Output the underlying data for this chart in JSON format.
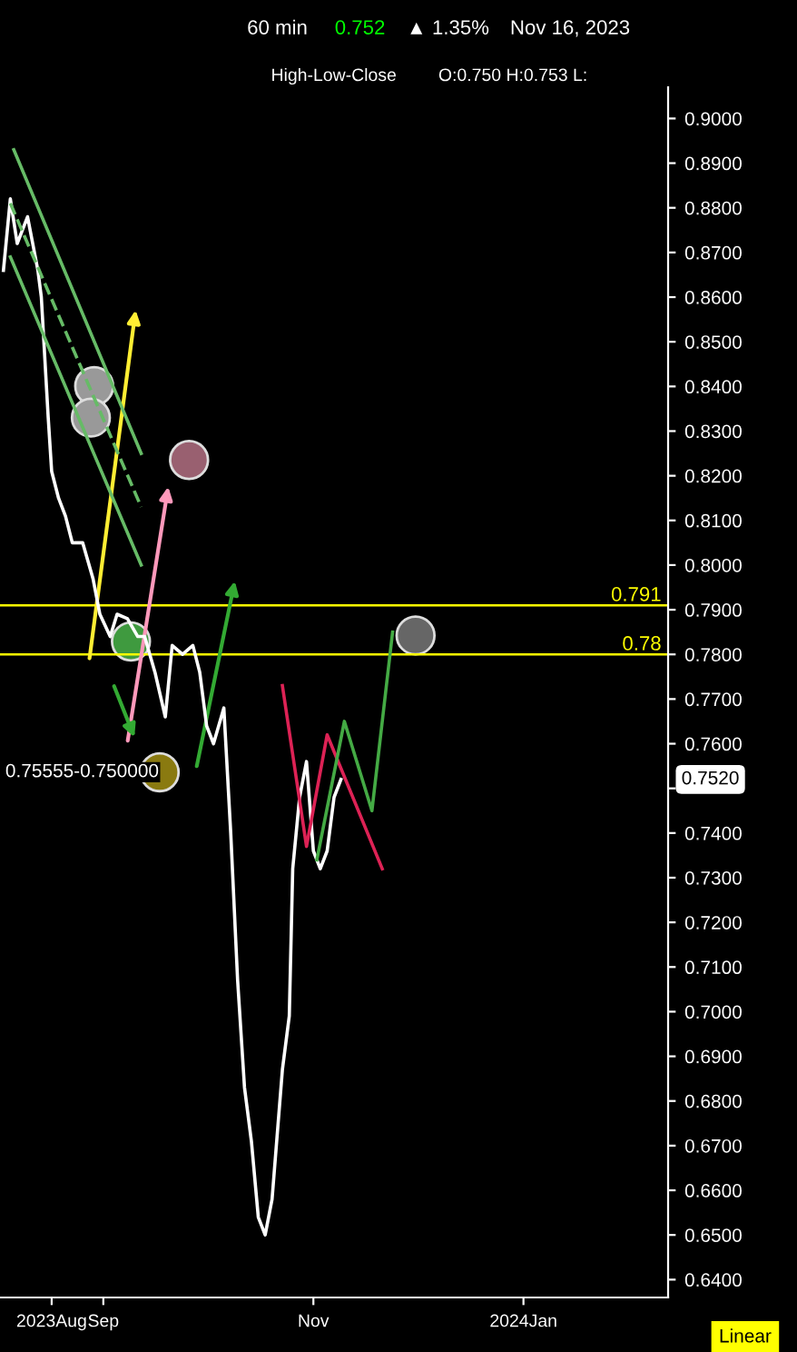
{
  "chart_data": {
    "type": "line",
    "title": "60 min",
    "subtitle": "High-Low-Close",
    "annotations": [
      "0.752",
      "▲ 1.35%",
      "Nov 16, 2023",
      "O:0.750 H:0.753 L:",
      "0.75555-0.750000",
      "0.7520",
      "Linear"
    ],
    "x": [
      "2023-08-03",
      "2023-08-05",
      "2023-08-07",
      "2023-08-10",
      "2023-08-13",
      "2023-08-14",
      "2023-08-16",
      "2023-08-17",
      "2023-08-19",
      "2023-08-21",
      "2023-08-23",
      "2023-08-26",
      "2023-08-29",
      "2023-08-31",
      "2023-09-03",
      "2023-09-05",
      "2023-09-08",
      "2023-09-11",
      "2023-09-13",
      "2023-09-16",
      "2023-09-19",
      "2023-09-21",
      "2023-09-24",
      "2023-09-27",
      "2023-09-29",
      "2023-10-01",
      "2023-10-03",
      "2023-10-06",
      "2023-10-08",
      "2023-10-10",
      "2023-10-12",
      "2023-10-14",
      "2023-10-16",
      "2023-10-18",
      "2023-10-20",
      "2023-10-23",
      "2023-10-25",
      "2023-10-26",
      "2023-10-28",
      "2023-10-30",
      "2023-11-01",
      "2023-11-03",
      "2023-11-05",
      "2023-11-07",
      "2023-11-09"
    ],
    "series": [
      {
        "color": "#ffffff",
        "values": [
          0.866,
          0.882,
          0.872,
          0.878,
          0.866,
          0.86,
          0.833,
          0.821,
          0.815,
          0.811,
          0.805,
          0.805,
          0.797,
          0.789,
          0.784,
          0.789,
          0.788,
          0.784,
          0.784,
          0.776,
          0.766,
          0.782,
          0.78,
          0.782,
          0.776,
          0.764,
          0.76,
          0.768,
          0.74,
          0.707,
          0.683,
          0.671,
          0.654,
          0.65,
          0.658,
          0.687,
          0.699,
          0.732,
          0.748,
          0.756,
          0.736,
          0.732,
          0.736,
          0.748,
          0.752
        ]
      },
      {
        "color": "#66bb66",
        "x": [
          "2023-08-06",
          "2023-09-12"
        ],
        "values": [
          0.893,
          0.825
        ]
      },
      {
        "color": "#66bb66",
        "x": [
          "2023-08-05",
          "2023-09-12"
        ],
        "values": [
          0.869,
          0.8
        ]
      },
      {
        "color": "#66bb66",
        "x": [
          "2023-08-05",
          "2023-09-12"
        ],
        "values": [
          0.881,
          0.813
        ],
        "line_style": "dashed"
      },
      {
        "color": "#dd2255",
        "x": [
          "2023-10-23",
          "2023-10-30",
          "2023-11-05",
          "2023-11-21"
        ],
        "values": [
          0.773,
          0.737,
          0.762,
          0.732
        ]
      },
      {
        "color": "#44aa44",
        "x": [
          "2023-11-02",
          "2023-11-10",
          "2023-11-18",
          "2023-11-24"
        ],
        "values": [
          0.734,
          0.765,
          0.745,
          0.785
        ]
      }
    ],
    "ylim": [
      0.636,
      0.907
    ],
    "yticks": [
      {
        "value": 0.64,
        "label": "0.6400"
      },
      {
        "value": 0.65,
        "label": "0.6500"
      },
      {
        "value": 0.66,
        "label": "0.6600"
      },
      {
        "value": 0.67,
        "label": "0.6700"
      },
      {
        "value": 0.68,
        "label": "0.6800"
      },
      {
        "value": 0.69,
        "label": "0.6900"
      },
      {
        "value": 0.7,
        "label": "0.7000"
      },
      {
        "value": 0.71,
        "label": "0.7100"
      },
      {
        "value": 0.72,
        "label": "0.7200"
      },
      {
        "value": 0.73,
        "label": "0.7300"
      },
      {
        "value": 0.74,
        "label": "0.7400"
      },
      {
        "value": 0.75,
        "label": null
      },
      {
        "value": 0.76,
        "label": "0.7600"
      },
      {
        "value": 0.77,
        "label": "0.7700"
      },
      {
        "value": 0.78,
        "label": "0.7800"
      },
      {
        "value": 0.79,
        "label": "0.7900"
      },
      {
        "value": 0.8,
        "label": "0.8000"
      },
      {
        "value": 0.81,
        "label": "0.8100"
      },
      {
        "value": 0.82,
        "label": "0.8200"
      },
      {
        "value": 0.83,
        "label": "0.8300"
      },
      {
        "value": 0.84,
        "label": "0.8400"
      },
      {
        "value": 0.85,
        "label": "0.8500"
      },
      {
        "value": 0.86,
        "label": "0.8600"
      },
      {
        "value": 0.87,
        "label": "0.8700"
      },
      {
        "value": 0.88,
        "label": "0.8800"
      },
      {
        "value": 0.89,
        "label": "0.8900"
      },
      {
        "value": 0.9,
        "label": "0.9000"
      }
    ],
    "xlim": [
      "2023-08-02",
      "2024-02-12"
    ],
    "xticks": [
      {
        "value": "2023-08-17",
        "label": "2023Aug"
      },
      {
        "value": "2023-09-01",
        "label": "Sep"
      },
      {
        "value": "2023-11-01",
        "label": "Nov"
      },
      {
        "value": "2024-01-01",
        "label": "2024Jan"
      }
    ],
    "ref_lines": [
      {
        "axis": "y",
        "value": 0.791,
        "label": "0.791",
        "color": "#ffff00"
      },
      {
        "axis": "y",
        "value": 0.78,
        "label": "0.78",
        "color": "#ffff00"
      }
    ],
    "grid": false,
    "legend": false
  }
}
